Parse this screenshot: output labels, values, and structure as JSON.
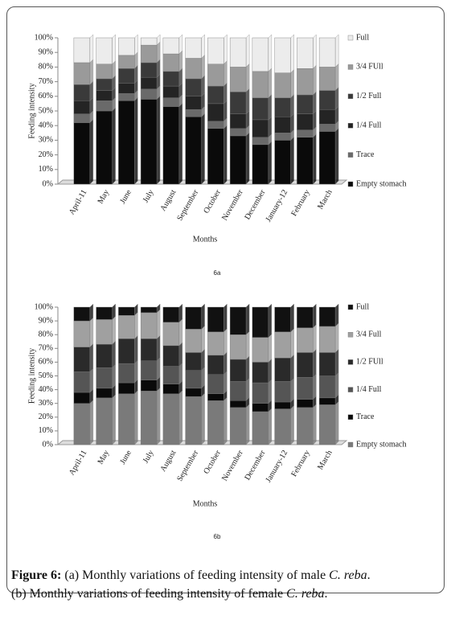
{
  "chart_data": [
    {
      "type": "bar",
      "stacked": true,
      "subtitle": "6a",
      "ylabel": "Feeding intensity",
      "xlabel": "Months",
      "categories": [
        "April-11",
        "May",
        "June",
        "July",
        "August",
        "September",
        "October",
        "November",
        "December",
        "January-12",
        "February",
        "March"
      ],
      "ylim": [
        0,
        100
      ],
      "yticks": [
        {
          "value": 0,
          "label": "0%"
        },
        {
          "value": 10,
          "label": "10%"
        },
        {
          "value": 20,
          "label": "20%"
        },
        {
          "value": 30,
          "label": "30%"
        },
        {
          "value": 40,
          "label": "40%"
        },
        {
          "value": 50,
          "label": "50%"
        },
        {
          "value": 60,
          "label": "60%"
        },
        {
          "value": 70,
          "label": "70%"
        },
        {
          "value": 80,
          "label": "80%"
        },
        {
          "value": 90,
          "label": "90%"
        },
        {
          "value": 100,
          "label": "100%"
        }
      ],
      "series": [
        {
          "name": "Empty stomach",
          "color": "#0a0a0a",
          "values": [
            42,
            50,
            57,
            58,
            53,
            46,
            38,
            33,
            27,
            30,
            32,
            36
          ]
        },
        {
          "name": "Trace",
          "color": "#6a6a6a",
          "values": [
            6,
            7,
            5,
            7,
            6,
            5,
            5,
            5,
            5,
            5,
            5,
            5
          ]
        },
        {
          "name": "1/4 Full",
          "color": "#242424",
          "values": [
            9,
            7,
            7,
            8,
            8,
            9,
            12,
            10,
            12,
            11,
            11,
            10
          ]
        },
        {
          "name": "1/2 Full",
          "color": "#3a3a3a",
          "values": [
            11,
            8,
            10,
            10,
            10,
            12,
            12,
            15,
            15,
            13,
            13,
            13
          ]
        },
        {
          "name": "3/4 FUll",
          "color": "#9a9a9a",
          "values": [
            15,
            10,
            9,
            12,
            12,
            14,
            15,
            17,
            18,
            17,
            18,
            16
          ]
        },
        {
          "name": "Full",
          "color": "#ececec",
          "values": [
            17,
            18,
            12,
            5,
            11,
            14,
            18,
            20,
            23,
            24,
            21,
            20
          ]
        }
      ]
    },
    {
      "type": "bar",
      "stacked": true,
      "subtitle": "6b",
      "ylabel": "Feeding intensity",
      "xlabel": "Months",
      "categories": [
        "April-11",
        "May",
        "June",
        "July",
        "August",
        "September",
        "October",
        "November",
        "December",
        "January-12",
        "February",
        "March"
      ],
      "ylim": [
        0,
        100
      ],
      "yticks": [
        {
          "value": 0,
          "label": "0%"
        },
        {
          "value": 10,
          "label": "10%"
        },
        {
          "value": 20,
          "label": "20%"
        },
        {
          "value": 30,
          "label": "30%"
        },
        {
          "value": 40,
          "label": "40%"
        },
        {
          "value": 50,
          "label": "50%"
        },
        {
          "value": 60,
          "label": "60%"
        },
        {
          "value": 70,
          "label": "70%"
        },
        {
          "value": 80,
          "label": "80%"
        },
        {
          "value": 90,
          "label": "90%"
        },
        {
          "value": 100,
          "label": "100%"
        }
      ],
      "series": [
        {
          "name": "Empty stomach",
          "color": "#7a7a7a",
          "values": [
            30,
            34,
            37,
            39,
            37,
            35,
            32,
            27,
            24,
            26,
            27,
            29
          ]
        },
        {
          "name": "Trace",
          "color": "#0a0a0a",
          "values": [
            8,
            7,
            8,
            8,
            7,
            6,
            5,
            5,
            6,
            5,
            6,
            5
          ]
        },
        {
          "name": "1/4 Full",
          "color": "#555555",
          "values": [
            15,
            15,
            14,
            14,
            13,
            13,
            14,
            14,
            15,
            15,
            16,
            16
          ]
        },
        {
          "name": "1/2 FUll",
          "color": "#2a2a2a",
          "values": [
            18,
            17,
            18,
            16,
            15,
            13,
            14,
            16,
            15,
            17,
            18,
            17
          ]
        },
        {
          "name": "3/4 Full",
          "color": "#a0a0a0",
          "values": [
            19,
            18,
            17,
            19,
            17,
            17,
            17,
            18,
            18,
            19,
            18,
            19
          ]
        },
        {
          "name": "Full",
          "color": "#111111",
          "values": [
            10,
            9,
            6,
            4,
            11,
            16,
            18,
            20,
            22,
            18,
            15,
            14
          ]
        }
      ]
    }
  ],
  "caption": {
    "label": "Figure 6:",
    "a_text": "(a) Monthly variations of feeding intensity of male ",
    "a_species": "C. reba",
    "a_end": ".",
    "b_text": "(b) Monthly variations of feeding intensity of female ",
    "b_species": "C. reba",
    "b_end": "."
  }
}
